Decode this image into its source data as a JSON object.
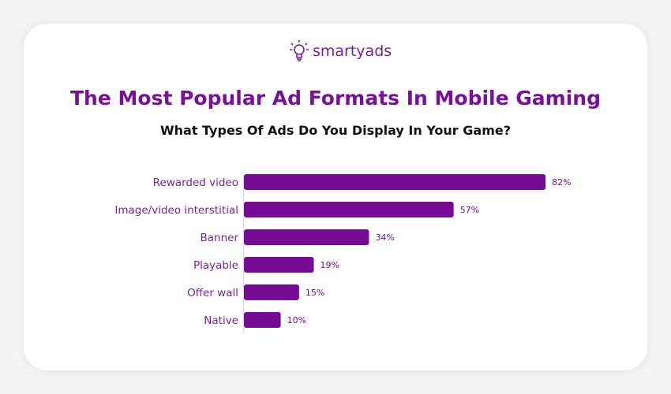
{
  "logo": {
    "text": "smartyads"
  },
  "colors": {
    "bar": "#760c96",
    "label": "#7b1fa2",
    "title": "#7a0f9a"
  },
  "chart_data": {
    "type": "bar",
    "orientation": "horizontal",
    "title": "The Most Popular Ad Formats In Mobile Gaming",
    "subtitle": "What Types Of Ads Do You Display In Your Game?",
    "categories": [
      "Rewarded video",
      "Image/video interstitial",
      "Banner",
      "Playable",
      "Offer wall",
      "Native"
    ],
    "values": [
      82,
      57,
      34,
      19,
      15,
      10
    ],
    "data_labels": [
      "82%",
      "57%",
      "34%",
      "19%",
      "15%",
      "10%"
    ],
    "xlim": [
      0,
      100
    ],
    "grid": false,
    "legend": "none"
  }
}
